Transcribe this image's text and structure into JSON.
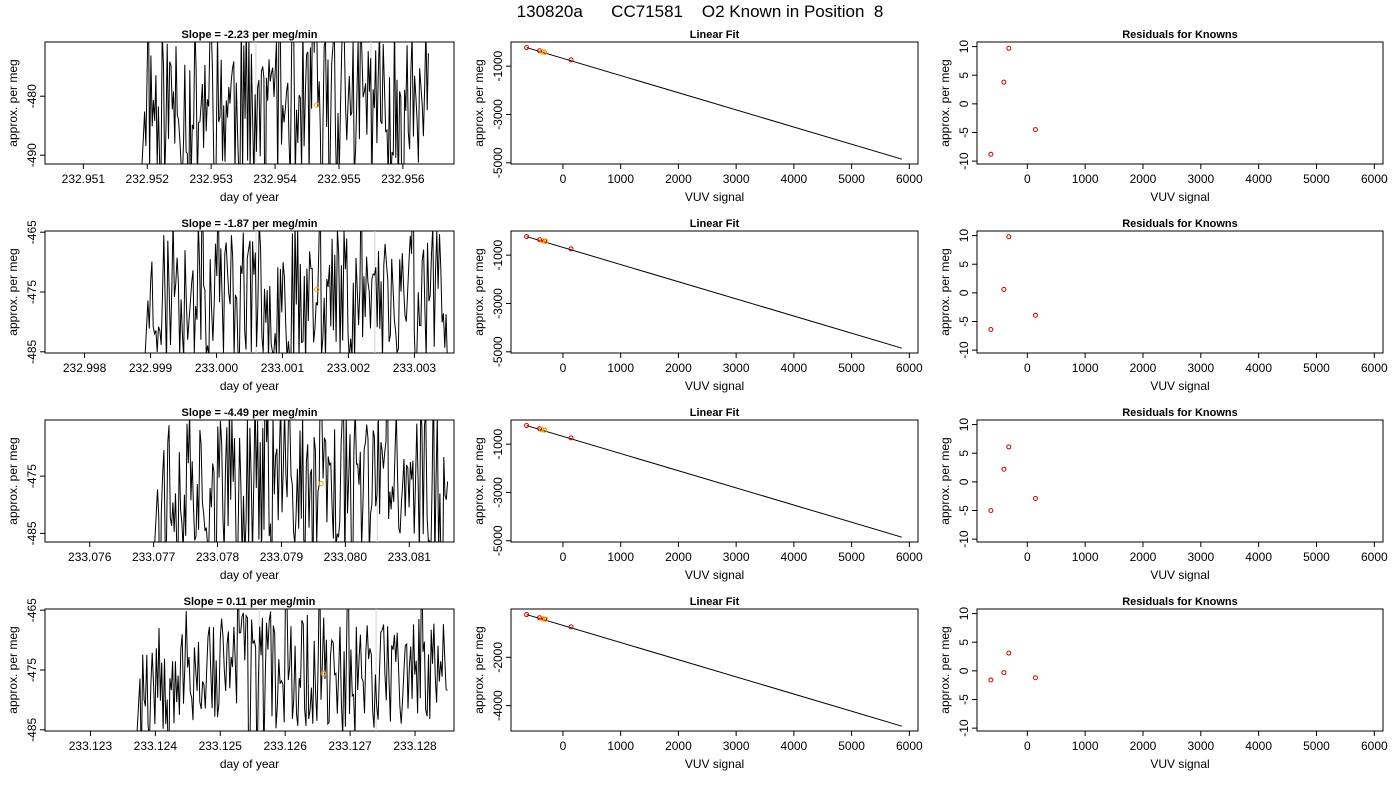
{
  "figure": {
    "title": "130820a      CC71581    O2 Known in Position  8"
  },
  "colors": {
    "trace": "#000000",
    "highlight": "#ffa500",
    "residual": "#cc0000",
    "vline": "#d3d3d3"
  },
  "chart_data": [
    {
      "type": "line",
      "panel": "time-series",
      "row": 1,
      "title": "Slope =  -2.23  per meg/min",
      "xlabel": "day of year",
      "ylabel": "approx. per meg",
      "xlim": [
        232.9504,
        232.9568
      ],
      "ylim": [
        -491.5,
        -470.8
      ],
      "xticks": [
        232.951,
        232.952,
        232.953,
        232.954,
        232.955,
        232.956
      ],
      "xtick_labels": [
        "232.951",
        "232.952",
        "232.953",
        "232.954",
        "232.955",
        "232.956"
      ],
      "yticks": [
        -480,
        -490
      ],
      "ytick_labels": [
        "-480",
        "-490"
      ],
      "data_start": 232.9519,
      "data_end": 232.9564,
      "seed": 11,
      "amp": 14,
      "vlines": [
        232.9537,
        232.9555
      ],
      "highlight_point": {
        "x": 232.95465,
        "y": -481.5
      }
    },
    {
      "type": "line",
      "panel": "time-series",
      "row": 2,
      "title": "Slope =  -1.87  per meg/min",
      "xlabel": "day of year",
      "ylabel": "approx. per meg",
      "xlim": [
        232.9974,
        233.0036
      ],
      "ylim": [
        -485.2,
        -464.8
      ],
      "xticks": [
        232.998,
        232.999,
        233.0,
        233.001,
        233.002,
        233.003
      ],
      "xtick_labels": [
        "232.998",
        "232.999",
        "233.000",
        "233.001",
        "233.002",
        "233.003"
      ],
      "yticks": [
        -465,
        -475,
        -485
      ],
      "ytick_labels": [
        "-465",
        "-475",
        "-485"
      ],
      "data_start": 232.9989,
      "data_end": 233.0035,
      "seed": 23,
      "amp": 12,
      "vlines": [
        233.0006,
        233.0024
      ],
      "highlight_point": {
        "x": 233.00152,
        "y": -474.6
      }
    },
    {
      "type": "line",
      "panel": "time-series",
      "row": 3,
      "title": "Slope =  -4.49  per meg/min",
      "xlabel": "day of year",
      "ylabel": "approx. per meg",
      "xlim": [
        233.0753,
        233.0817
      ],
      "ylim": [
        -486.5,
        -465.2
      ],
      "xticks": [
        233.076,
        233.077,
        233.078,
        233.079,
        233.08,
        233.081
      ],
      "xtick_labels": [
        "233.076",
        "233.077",
        "233.078",
        "233.079",
        "233.080",
        "233.081"
      ],
      "yticks": [
        -475,
        -485
      ],
      "ytick_labels": [
        "-475",
        "-485"
      ],
      "data_start": 233.077,
      "data_end": 233.0816,
      "seed": 37,
      "amp": 13,
      "vlines": [
        233.0787,
        233.0805
      ],
      "highlight_point": {
        "x": 233.07962,
        "y": -476.3
      }
    },
    {
      "type": "line",
      "panel": "time-series",
      "row": 4,
      "title": "Slope =  0.11  per meg/min",
      "xlabel": "day of year",
      "ylabel": "approx. per meg",
      "xlim": [
        233.1223,
        233.1286
      ],
      "ylim": [
        -485.2,
        -464.8
      ],
      "xticks": [
        233.123,
        233.124,
        233.125,
        233.126,
        233.127,
        233.128
      ],
      "xtick_labels": [
        "233.123",
        "233.124",
        "233.125",
        "233.126",
        "233.127",
        "233.128"
      ],
      "yticks": [
        -465,
        -475,
        -485
      ],
      "ytick_labels": [
        "-465",
        "-475",
        "-485"
      ],
      "data_start": 233.1237,
      "data_end": 233.1285,
      "seed": 53,
      "amp": 10,
      "vlines": [
        233.1256,
        233.1274
      ],
      "highlight_point": {
        "x": 233.12659,
        "y": -475.6
      }
    },
    {
      "type": "scatter",
      "panel": "linear-fit",
      "row": 1,
      "title": "Linear Fit",
      "xlabel": "VUV signal",
      "ylabel": "approx. per meg",
      "xlim": [
        -900,
        6150
      ],
      "ylim": [
        -5050,
        0
      ],
      "xticks": [
        0,
        1000,
        2000,
        3000,
        4000,
        5000,
        6000
      ],
      "yticks": [
        -1000,
        -3000,
        -5000
      ],
      "ytick_labels": [
        "-1000",
        "-3000",
        "-5000"
      ],
      "points": [
        [
          -630,
          -230
        ],
        [
          -405,
          -360
        ],
        [
          -320,
          -420
        ],
        [
          140,
          -740
        ]
      ],
      "highlight_points": [
        [
          -360,
          -400
        ],
        [
          -320,
          -425
        ]
      ],
      "fit_line": [
        [
          -630,
          -230
        ],
        [
          5870,
          -4850
        ]
      ]
    },
    {
      "type": "scatter",
      "panel": "linear-fit",
      "row": 2,
      "title": "Linear Fit",
      "xlabel": "VUV signal",
      "ylabel": "approx. per meg",
      "xlim": [
        -900,
        6150
      ],
      "ylim": [
        -5050,
        0
      ],
      "xticks": [
        0,
        1000,
        2000,
        3000,
        4000,
        5000,
        6000
      ],
      "yticks": [
        -1000,
        -3000,
        -5000
      ],
      "ytick_labels": [
        "-1000",
        "-3000",
        "-5000"
      ],
      "points": [
        [
          -630,
          -230
        ],
        [
          -405,
          -360
        ],
        [
          -320,
          -420
        ],
        [
          140,
          -740
        ]
      ],
      "highlight_points": [
        [
          -360,
          -395
        ],
        [
          -300,
          -420
        ]
      ],
      "fit_line": [
        [
          -630,
          -230
        ],
        [
          5870,
          -4850
        ]
      ]
    },
    {
      "type": "scatter",
      "panel": "linear-fit",
      "row": 3,
      "title": "Linear Fit",
      "xlabel": "VUV signal",
      "ylabel": "approx. per meg",
      "xlim": [
        -900,
        6150
      ],
      "ylim": [
        -5050,
        0
      ],
      "xticks": [
        0,
        1000,
        2000,
        3000,
        4000,
        5000,
        6000
      ],
      "yticks": [
        -1000,
        -3000,
        -5000
      ],
      "ytick_labels": [
        "-1000",
        "-3000",
        "-5000"
      ],
      "points": [
        [
          -630,
          -230
        ],
        [
          -405,
          -360
        ],
        [
          -320,
          -420
        ],
        [
          140,
          -740
        ]
      ],
      "highlight_points": [
        [
          -370,
          -395
        ],
        [
          -320,
          -420
        ]
      ],
      "fit_line": [
        [
          -630,
          -230
        ],
        [
          5870,
          -4850
        ]
      ]
    },
    {
      "type": "scatter",
      "panel": "linear-fit",
      "row": 4,
      "title": "Linear Fit",
      "xlabel": "VUV signal",
      "ylabel": "approx. per meg",
      "xlim": [
        -900,
        6150
      ],
      "ylim": [
        -5050,
        0
      ],
      "xticks": [
        0,
        1000,
        2000,
        3000,
        4000,
        5000,
        6000
      ],
      "yticks": [
        -2000,
        -4000
      ],
      "ytick_labels": [
        "-2000",
        "-4000"
      ],
      "points": [
        [
          -630,
          -230
        ],
        [
          -405,
          -360
        ],
        [
          -320,
          -420
        ],
        [
          140,
          -740
        ]
      ],
      "highlight_points": [
        [
          -360,
          -395
        ],
        [
          -300,
          -420
        ]
      ],
      "fit_line": [
        [
          -630,
          -230
        ],
        [
          5870,
          -4850
        ]
      ]
    },
    {
      "type": "scatter",
      "panel": "residuals",
      "row": 1,
      "title": "Residuals for Knowns",
      "xlabel": "VUV signal",
      "ylabel": "approx. per meg",
      "xlim": [
        -870,
        6150
      ],
      "ylim": [
        -10.5,
        10.8
      ],
      "xticks": [
        0,
        1000,
        2000,
        3000,
        4000,
        5000,
        6000
      ],
      "yticks": [
        10,
        5,
        0,
        -5,
        -10
      ],
      "ytick_labels": [
        "10",
        "5",
        "0",
        "-5",
        "-10"
      ],
      "points": [
        [
          -630,
          -8.8
        ],
        [
          -405,
          3.8
        ],
        [
          -320,
          9.7
        ],
        [
          140,
          -4.5
        ]
      ]
    },
    {
      "type": "scatter",
      "panel": "residuals",
      "row": 2,
      "title": "Residuals for Knowns",
      "xlabel": "VUV signal",
      "ylabel": "approx. per meg",
      "xlim": [
        -870,
        6150
      ],
      "ylim": [
        -10.5,
        10.8
      ],
      "xticks": [
        0,
        1000,
        2000,
        3000,
        4000,
        5000,
        6000
      ],
      "yticks": [
        10,
        5,
        0,
        -5,
        -10
      ],
      "ytick_labels": [
        "10",
        "5",
        "0",
        "-5",
        "-10"
      ],
      "points": [
        [
          -630,
          -6.4
        ],
        [
          -405,
          0.6
        ],
        [
          -320,
          9.8
        ],
        [
          140,
          -3.9
        ]
      ]
    },
    {
      "type": "scatter",
      "panel": "residuals",
      "row": 3,
      "title": "Residuals for Knowns",
      "xlabel": "VUV signal",
      "ylabel": "approx. per meg",
      "xlim": [
        -870,
        6150
      ],
      "ylim": [
        -10.5,
        10.8
      ],
      "xticks": [
        0,
        1000,
        2000,
        3000,
        4000,
        5000,
        6000
      ],
      "yticks": [
        10,
        5,
        0,
        -5,
        -10
      ],
      "ytick_labels": [
        "10",
        "5",
        "0",
        "-5",
        "-10"
      ],
      "points": [
        [
          -630,
          -5.0
        ],
        [
          -405,
          2.2
        ],
        [
          -320,
          6.1
        ],
        [
          140,
          -2.9
        ]
      ]
    },
    {
      "type": "scatter",
      "panel": "residuals",
      "row": 4,
      "title": "Residuals for Knowns",
      "xlabel": "VUV signal",
      "ylabel": "approx. per meg",
      "xlim": [
        -870,
        6150
      ],
      "ylim": [
        -10.5,
        10.8
      ],
      "xticks": [
        0,
        1000,
        2000,
        3000,
        4000,
        5000,
        6000
      ],
      "yticks": [
        10,
        5,
        0,
        -5,
        -10
      ],
      "ytick_labels": [
        "10",
        "5",
        "0",
        "-5",
        "-10"
      ],
      "points": [
        [
          -630,
          -1.6
        ],
        [
          -405,
          -0.3
        ],
        [
          -320,
          3.1
        ],
        [
          140,
          -1.2
        ]
      ]
    }
  ]
}
